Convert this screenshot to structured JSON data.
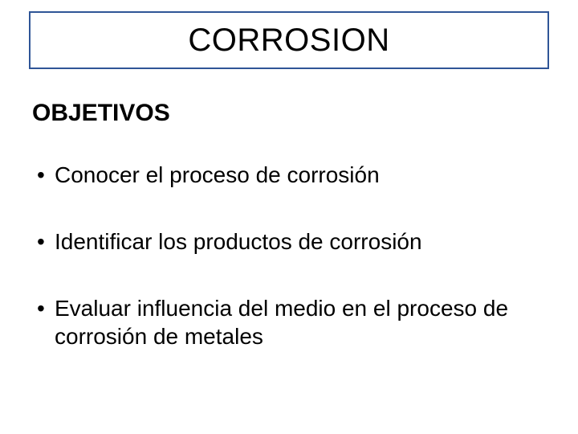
{
  "colors": {
    "title_border": "#2f5597",
    "text": "#000000",
    "background": "#ffffff"
  },
  "title": "CORROSION",
  "subtitle": "OBJETIVOS",
  "bullets": [
    "Conocer el proceso de corrosión",
    "Identificar los productos de corrosión",
    "Evaluar influencia del medio en el proceso de corrosión de metales"
  ]
}
